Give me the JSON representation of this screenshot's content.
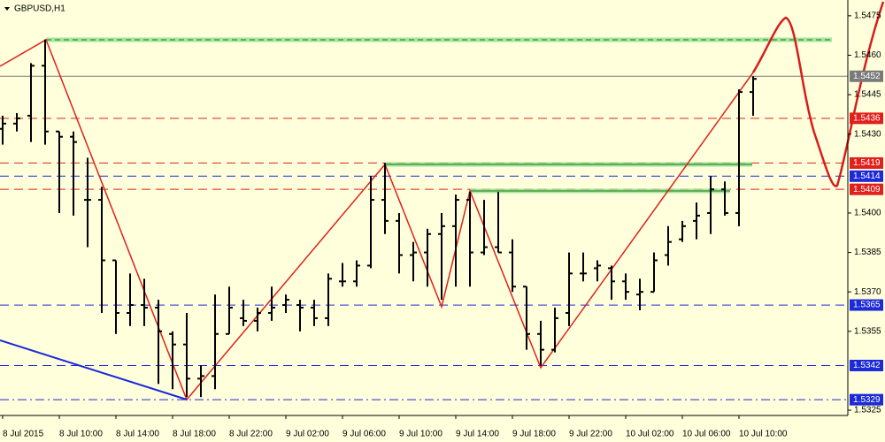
{
  "chart_data": {
    "type": "ohlc",
    "title": "GBPUSD,H1",
    "categories": [
      "8 Jul 2015",
      null,
      null,
      null,
      "8 Jul 10:00",
      null,
      null,
      null,
      "8 Jul 14:00",
      null,
      null,
      null,
      "8 Jul 18:00",
      null,
      null,
      null,
      "8 Jul 22:00",
      null,
      null,
      null,
      "9 Jul 02:00",
      null,
      null,
      null,
      "9 Jul 06:00",
      null,
      null,
      null,
      "9 Jul 10:00",
      null,
      null,
      null,
      "9 Jul 14:00",
      null,
      null,
      null,
      "9 Jul 18:00",
      null,
      null,
      null,
      "9 Jul 22:00",
      null,
      null,
      null,
      "10 Jul 02:00",
      null,
      null,
      null,
      "10 Jul 06:00",
      null,
      null,
      null,
      "10 Jul 10:00",
      null
    ],
    "open": [
      1.5432,
      1.5434,
      1.5437,
      1.5456,
      1.5431,
      1.5429,
      1.5405,
      1.5405,
      1.5382,
      1.5362,
      1.5365,
      1.5364,
      1.5354,
      1.535,
      1.5337,
      1.5338,
      1.5354,
      1.536,
      1.5359,
      1.5362,
      1.5365,
      1.5365,
      1.5364,
      1.536,
      1.5374,
      1.5374,
      1.538,
      1.5405,
      1.5397,
      1.5384,
      1.5385,
      1.5392,
      1.5395,
      1.5405,
      1.5385,
      1.5387,
      1.5385,
      1.5372,
      1.5354,
      1.5348,
      1.5362,
      1.5377,
      1.5379,
      1.5379,
      1.5374,
      1.5369,
      1.537,
      1.5384,
      1.539,
      1.5397,
      1.54,
      1.5409,
      1.54,
      1.5446
    ],
    "high": [
      1.5437,
      1.5438,
      1.5457,
      1.5466,
      1.5431,
      1.5431,
      1.5421,
      1.541,
      1.5382,
      1.5377,
      1.5375,
      1.5367,
      1.5355,
      1.5362,
      1.5342,
      1.5369,
      1.5372,
      1.5367,
      1.5364,
      1.5372,
      1.5369,
      1.5367,
      1.5367,
      1.5377,
      1.5381,
      1.5382,
      1.5414,
      1.5419,
      1.54,
      1.5389,
      1.5394,
      1.54,
      1.5407,
      1.5408,
      1.5405,
      1.5408,
      1.539,
      1.5372,
      1.5359,
      1.5364,
      1.5385,
      1.5385,
      1.5382,
      1.538,
      1.5377,
      1.5375,
      1.5385,
      1.5395,
      1.5397,
      1.5404,
      1.5414,
      1.5412,
      1.5447,
      1.5452
    ],
    "low": [
      1.5426,
      1.5431,
      1.5427,
      1.5426,
      1.54,
      1.5399,
      1.5387,
      1.5362,
      1.5354,
      1.5357,
      1.5357,
      1.5335,
      1.5333,
      1.533,
      1.533,
      1.5333,
      1.5354,
      1.5357,
      1.5355,
      1.5359,
      1.5362,
      1.5355,
      1.5357,
      1.5357,
      1.5372,
      1.5372,
      1.5379,
      1.5392,
      1.5377,
      1.5374,
      1.5372,
      1.5367,
      1.5372,
      1.5372,
      1.5384,
      1.5385,
      1.537,
      1.5348,
      1.5342,
      1.5347,
      1.5357,
      1.5374,
      1.5374,
      1.5367,
      1.5367,
      1.5363,
      1.537,
      1.538,
      1.5389,
      1.539,
      1.5392,
      1.5399,
      1.5395,
      1.5437
    ],
    "close": [
      1.5434,
      1.5436,
      1.5456,
      1.5431,
      1.5429,
      1.5427,
      1.5405,
      1.5382,
      1.5362,
      1.5365,
      1.5364,
      1.5355,
      1.535,
      1.5337,
      1.5338,
      1.5354,
      1.5364,
      1.5359,
      1.5362,
      1.5364,
      1.5367,
      1.5364,
      1.536,
      1.5375,
      1.5374,
      1.538,
      1.5405,
      1.5397,
      1.5384,
      1.5385,
      1.5392,
      1.5395,
      1.5405,
      1.5385,
      1.5387,
      1.5385,
      1.5372,
      1.5354,
      1.5348,
      1.536,
      1.5377,
      1.5377,
      1.538,
      1.5374,
      1.537,
      1.537,
      1.5382,
      1.5389,
      1.5395,
      1.5399,
      1.5409,
      1.54,
      1.5446,
      1.5451
    ],
    "color": "#000000",
    "ylim": [
      1.5323,
      1.5481
    ],
    "yticks": [
      1.5475,
      {
        "value": 1.546,
        "label": "1.5460"
      },
      1.5445,
      {
        "value": 1.543,
        "label": "1.5430"
      },
      {
        "value": 1.54,
        "label": "1.5400"
      },
      1.5385,
      {
        "value": 1.537,
        "label": "1.5370"
      },
      1.5355,
      1.5325
    ],
    "levels": [
      {
        "value": 1.5436,
        "color": "#e0201c",
        "style": "dashed"
      },
      {
        "value": 1.5452,
        "color": "#7a7a7a",
        "style": "solid"
      },
      {
        "value": 1.5419,
        "color": "#e0201c",
        "style": "dashed"
      },
      {
        "value": 1.5414,
        "color": "#1c2ad8",
        "style": "dashed"
      },
      {
        "value": 1.5409,
        "color": "#e0201c",
        "style": "dashed"
      },
      {
        "value": 1.5365,
        "color": "#1c2ad8",
        "style": "dashed"
      },
      {
        "value": 1.5342,
        "color": "#1c2ad8",
        "style": "dashed"
      },
      {
        "value": 1.5329,
        "color": "#1c2ad8",
        "style": "dashdot"
      }
    ]
  }
}
